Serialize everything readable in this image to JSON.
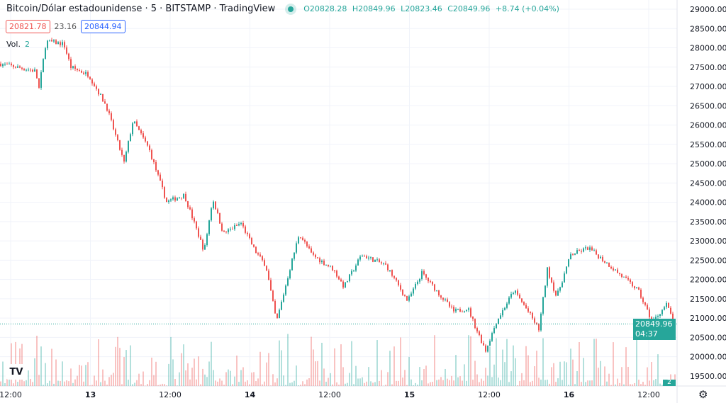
{
  "header": {
    "title": "Bitcoin/Dólar estadounidense · 5 · BITSTAMP · TradingView",
    "ohlc": {
      "open": "O20828.28",
      "high": "H20849.96",
      "low": "L20823.46",
      "close": "C20849.96",
      "change": "+8.74 (+0.04%)"
    },
    "bid": "20821.78",
    "spread": "23.16",
    "ask": "20844.94",
    "volume_label": "Vol.",
    "volume_value": "2"
  },
  "price_tag": {
    "price": "20849.96",
    "countdown": "04:37"
  },
  "volume_tag": "2",
  "icons": {
    "logo": "tradingview-logo",
    "settings": "gear-icon",
    "status": "market-open-dot"
  },
  "colors": {
    "up": "#26a69a",
    "down": "#ef5350",
    "bid": "#ef5350",
    "ask": "#2962ff"
  },
  "chart_data": {
    "type": "candlestick",
    "interval": "5",
    "y_ticks": [
      "29000.00",
      "28500.00",
      "28000.00",
      "27500.00",
      "27000.00",
      "26500.00",
      "26000.00",
      "25500.00",
      "25000.00",
      "24500.00",
      "24000.00",
      "23500.00",
      "23000.00",
      "22500.00",
      "22000.00",
      "21500.00",
      "21000.00",
      "20500.00",
      "20000.00",
      "19500.00"
    ],
    "ylim": [
      19250,
      29150
    ],
    "x_ticks": [
      "12:00",
      "13",
      "12:00",
      "14",
      "12:00",
      "15",
      "12:00",
      "16",
      "12:00"
    ],
    "grid": true,
    "last_price": 20849.96,
    "price_path": [
      [
        "12 10:24",
        27590
      ],
      [
        "12 15:44",
        27400
      ],
      [
        "12 16:16",
        26950
      ],
      [
        "12 17:20",
        28170
      ],
      [
        "12 20:00",
        28100
      ],
      [
        "12 21:04",
        27500
      ],
      [
        "12 23:44",
        27300
      ],
      [
        "13 02:24",
        26490
      ],
      [
        "13 05:04",
        25020
      ],
      [
        "13 06:25",
        26120
      ],
      [
        "13 08:48",
        25390
      ],
      [
        "13 11:28",
        24010
      ],
      [
        "13 14:08",
        24190
      ],
      [
        "13 17:07",
        22730
      ],
      [
        "13 18:24",
        24100
      ],
      [
        "13 20:00",
        23190
      ],
      [
        "13 22:40",
        23460
      ],
      [
        "14 00:48",
        22730
      ],
      [
        "14 02:24",
        22360
      ],
      [
        "14 04:00",
        20900
      ],
      [
        "14 06:08",
        22360
      ],
      [
        "14 07:25",
        23190
      ],
      [
        "14 09:20",
        22640
      ],
      [
        "14 12:32",
        22270
      ],
      [
        "14 14:08",
        21810
      ],
      [
        "14 16:48",
        22640
      ],
      [
        "14 20:32",
        22360
      ],
      [
        "14 23:44",
        21440
      ],
      [
        "15 01:52",
        22170
      ],
      [
        "15 06:40",
        21170
      ],
      [
        "15 08:48",
        21260
      ],
      [
        "15 09:52",
        20800
      ],
      [
        "15 11:28",
        20160
      ],
      [
        "15 13:04",
        20900
      ],
      [
        "15 15:44",
        21720
      ],
      [
        "15 17:52",
        21170
      ],
      [
        "15 19:28",
        20710
      ],
      [
        "15 20:45",
        22270
      ],
      [
        "15 22:08",
        21540
      ],
      [
        "16 00:16",
        22640
      ],
      [
        "16 02:56",
        22820
      ],
      [
        "16 06:08",
        22360
      ],
      [
        "16 10:24",
        21720
      ],
      [
        "16 12:32",
        20900
      ],
      [
        "16 14:40",
        21350
      ],
      [
        "16 15:57",
        20850
      ]
    ]
  }
}
